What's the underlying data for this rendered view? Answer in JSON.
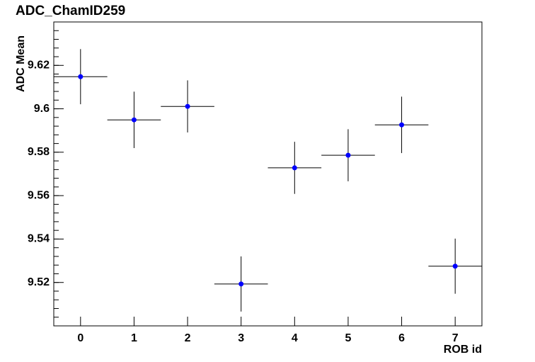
{
  "chart_data": {
    "type": "errorbar",
    "title": "ADC_ChamID259",
    "x_label": "ROB id",
    "y_label": "ADC Mean",
    "x": [
      0,
      1,
      2,
      3,
      4,
      5,
      6,
      7
    ],
    "values": [
      9.6148,
      9.5949,
      9.6011,
      9.5193,
      9.5728,
      9.5786,
      9.5926,
      9.5275
    ],
    "errors": [
      0.0127,
      0.013,
      0.012,
      0.0127,
      0.012,
      0.012,
      0.013,
      0.0127
    ],
    "xerrors": [
      0.5,
      0.5,
      0.5,
      0.5,
      0.5,
      0.5,
      0.5,
      0.5
    ],
    "color": "#0000ff",
    "xlim": [
      -0.5,
      7.5
    ],
    "xticks": [
      0,
      1,
      2,
      3,
      4,
      5,
      6,
      7
    ],
    "ylim": [
      9.5,
      9.64
    ],
    "yticks": [
      9.52,
      9.54,
      9.56,
      9.58,
      9.6,
      9.62
    ],
    "grid": false
  }
}
